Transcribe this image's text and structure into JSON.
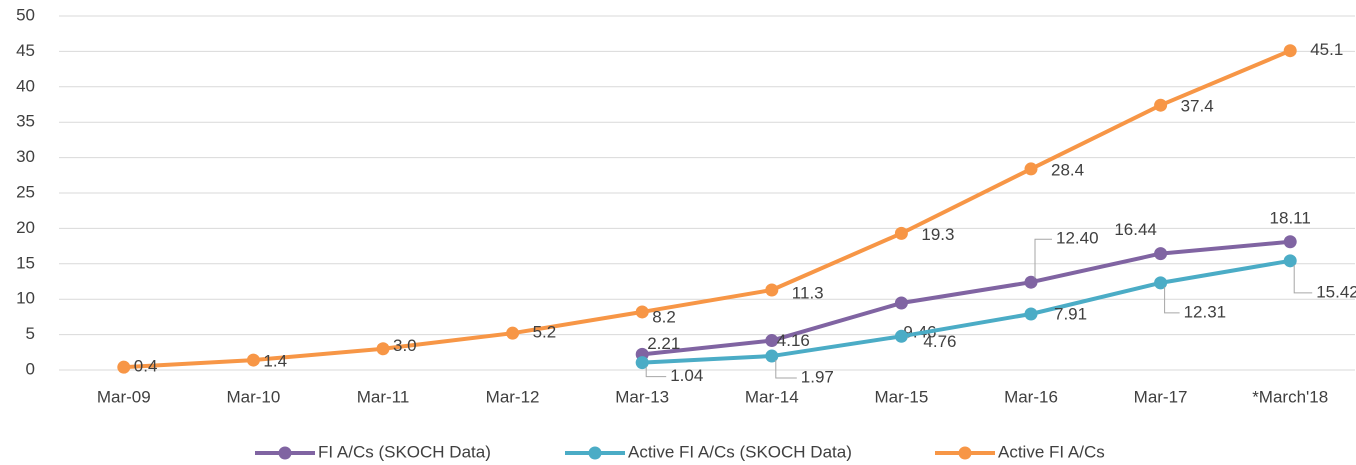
{
  "chart_data": {
    "type": "line",
    "categories": [
      "Mar-09",
      "Mar-10",
      "Mar-11",
      "Mar-12",
      "Mar-13",
      "Mar-14",
      "Mar-15",
      "Mar-16",
      "Mar-17",
      "*March'18"
    ],
    "series": [
      {
        "name": "FI A/Cs (SKOCH Data)",
        "color": "#8064a2",
        "values": [
          null,
          null,
          null,
          null,
          2.21,
          4.16,
          9.46,
          12.4,
          16.44,
          18.11
        ],
        "value_labels": [
          null,
          null,
          null,
          null,
          "2.21",
          "4.16",
          "9.46",
          "12.40",
          "16.44",
          "18.11"
        ]
      },
      {
        "name": "Active FI A/Cs (SKOCH Data)",
        "color": "#4bacc6",
        "values": [
          null,
          null,
          null,
          null,
          1.04,
          1.97,
          4.76,
          7.91,
          12.31,
          15.42
        ],
        "value_labels": [
          null,
          null,
          null,
          null,
          "1.04",
          "1.97",
          "4.76",
          "7.91",
          "12.31",
          "15.42"
        ]
      },
      {
        "name": "Active FI A/Cs",
        "color": "#f79646",
        "values": [
          0.4,
          1.4,
          3.0,
          5.2,
          8.2,
          11.3,
          19.3,
          28.4,
          37.4,
          45.1
        ],
        "value_labels": [
          "0.4",
          "1.4",
          "3.0",
          "5.2",
          "8.2",
          "11.3",
          "19.3",
          "28.4",
          "37.4",
          "45.1"
        ]
      }
    ],
    "ylim": [
      0,
      50
    ],
    "yticks": [
      0,
      5,
      10,
      15,
      20,
      25,
      30,
      35,
      40,
      45,
      50
    ],
    "grid": true,
    "legend": "bottom"
  }
}
